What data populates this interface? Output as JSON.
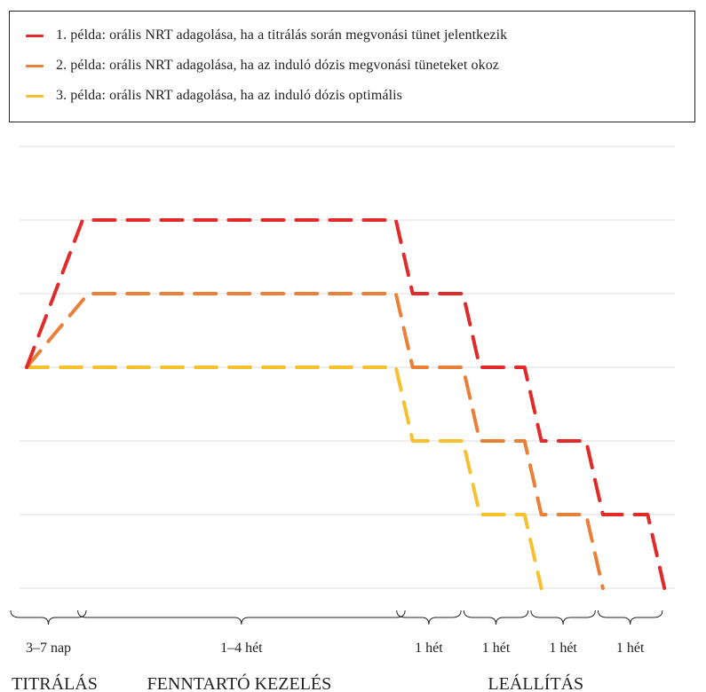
{
  "chart_data": {
    "type": "line",
    "title": "",
    "xlabel": "",
    "ylabel": "",
    "grid": true,
    "legend_position": "top",
    "y_levels": 6,
    "series": [
      {
        "name": "1. példa: orális NRT adagolása, ha a titrálás során megvonási tünet jelentkezik",
        "color": "#e12a2a",
        "points": [
          [
            0,
            3
          ],
          [
            0.5,
            5
          ],
          [
            3.3,
            5
          ],
          [
            3.45,
            4
          ],
          [
            3.9,
            4
          ],
          [
            4.05,
            3
          ],
          [
            4.45,
            3
          ],
          [
            4.6,
            2
          ],
          [
            5.0,
            2
          ],
          [
            5.15,
            1
          ],
          [
            5.55,
            1
          ],
          [
            5.7,
            0
          ]
        ]
      },
      {
        "name": "2. példa: orális NRT adagolása, ha az induló dózis megvonási tüneteket okoz",
        "color": "#e8803a",
        "points": [
          [
            0,
            3
          ],
          [
            0.55,
            4
          ],
          [
            3.3,
            4
          ],
          [
            3.45,
            3
          ],
          [
            3.9,
            3
          ],
          [
            4.05,
            2
          ],
          [
            4.45,
            2
          ],
          [
            4.6,
            1
          ],
          [
            5.0,
            1
          ],
          [
            5.15,
            0
          ]
        ]
      },
      {
        "name": "3. példa: orális NRT adagolása, ha az induló dózis optimális",
        "color": "#f5c12e",
        "points": [
          [
            0,
            3
          ],
          [
            3.3,
            3
          ],
          [
            3.45,
            2
          ],
          [
            3.9,
            2
          ],
          [
            4.05,
            1
          ],
          [
            4.45,
            1
          ],
          [
            4.6,
            0
          ]
        ]
      }
    ],
    "periods": [
      {
        "label": "3–7 nap",
        "start": 0,
        "end": 0.5
      },
      {
        "label": "1–4 hét",
        "start": 0.6,
        "end": 3.35
      },
      {
        "label": "1 hét",
        "start": 3.45,
        "end": 3.85
      },
      {
        "label": "1 hét",
        "start": 4.05,
        "end": 4.45
      },
      {
        "label": "1 hét",
        "start": 4.65,
        "end": 5.05
      },
      {
        "label": "1 hét",
        "start": 5.25,
        "end": 5.65
      }
    ],
    "phases": [
      {
        "label": "TITRÁLÁS",
        "center": 0.25
      },
      {
        "label": "FENNTARTÓ KEZELÉS",
        "center": 1.9
      },
      {
        "label": "LEÁLLÍTÁS",
        "center": 4.55
      }
    ]
  }
}
